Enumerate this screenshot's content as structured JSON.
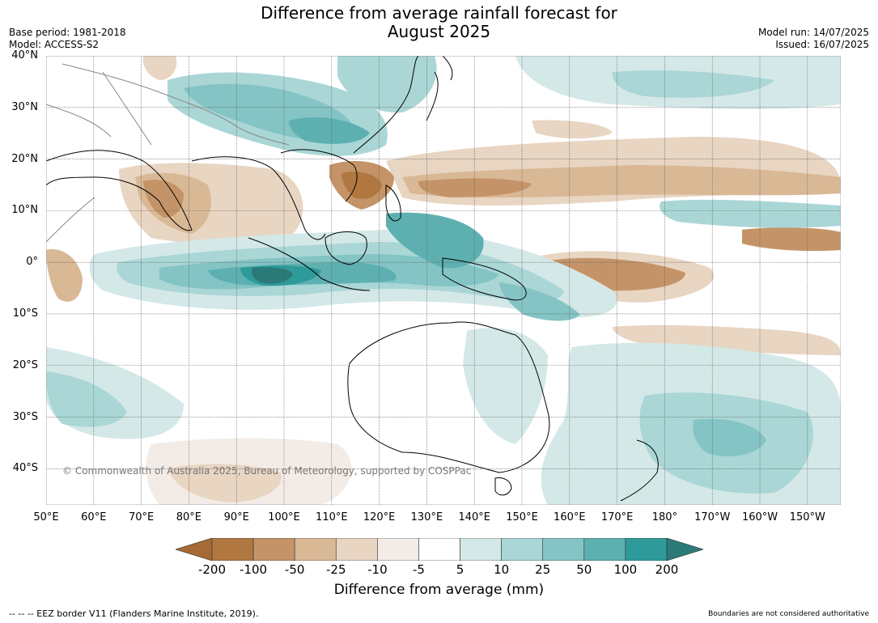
{
  "title_line1": "Difference from average rainfall forecast for",
  "title_line2": "August 2025",
  "base_period": "Base period: 1981-2018",
  "model": "Model: ACCESS-S2",
  "model_run": "Model run: 14/07/2025",
  "issued": "Issued: 16/07/2025",
  "lat_labels": [
    "40°N",
    "30°N",
    "20°N",
    "10°N",
    "0°",
    "10°S",
    "20°S",
    "30°S",
    "40°S"
  ],
  "lat_values": [
    40,
    30,
    20,
    10,
    0,
    -10,
    -20,
    -30,
    -40
  ],
  "lon_labels": [
    "50°E",
    "60°E",
    "70°E",
    "80°E",
    "90°E",
    "100°E",
    "110°E",
    "120°E",
    "130°E",
    "140°E",
    "150°E",
    "160°E",
    "170°E",
    "180°",
    "170°W",
    "160°W",
    "150°W"
  ],
  "lon_values": [
    50,
    60,
    70,
    80,
    90,
    100,
    110,
    120,
    130,
    140,
    150,
    160,
    170,
    180,
    190,
    200,
    210
  ],
  "extent": {
    "lon_min": 50,
    "lon_max": 217,
    "lat_min": -47,
    "lat_max": 40
  },
  "colorbar": {
    "labels": [
      "-200",
      "-100",
      "-50",
      "-25",
      "-10",
      "-5",
      "5",
      "10",
      "25",
      "50",
      "100",
      "200"
    ],
    "colors": [
      "#a66a35",
      "#b07840",
      "#c49468",
      "#d9b896",
      "#e8d5c2",
      "#f3ece6",
      "#ffffff",
      "#d4e8e8",
      "#aad6d6",
      "#84c4c4",
      "#5eb0b0",
      "#2e9a9a",
      "#2a7a78"
    ],
    "title": "Difference from average (mm)"
  },
  "copyright": "© Commonwealth of Australia 2025, Bureau of Meteorology, supported by COSPPac",
  "eez_note": "--  --  -- EEZ border V11 (Flanders Marine Institute, 2019).",
  "authority_note": "Boundaries are not considered authoritative",
  "colors": {
    "land_outline": "#000000",
    "border": "#888888",
    "grid": "#555555"
  }
}
